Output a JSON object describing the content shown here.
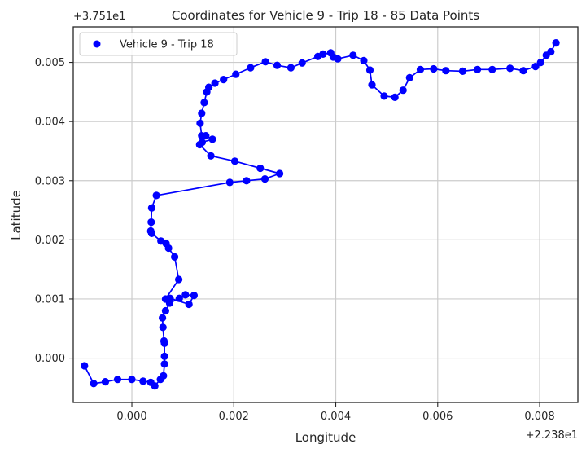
{
  "chart_data": {
    "type": "scatter",
    "title": "Coordinates for Vehicle 9 - Trip 18 - 85 Data Points",
    "xlabel": "Longitude",
    "ylabel": "Latitude",
    "x_offset_label": "+2.238e1",
    "y_offset_label": "+3.751e1",
    "xlim": [
      -0.00115,
      0.00875
    ],
    "ylim": [
      -0.00075,
      0.0056
    ],
    "x_ticks": [
      0.0,
      0.002,
      0.004,
      0.006,
      0.008
    ],
    "x_tick_labels": [
      "0.000",
      "0.002",
      "0.004",
      "0.006",
      "0.008"
    ],
    "y_ticks": [
      0.0,
      0.001,
      0.002,
      0.003,
      0.004,
      0.005
    ],
    "y_tick_labels": [
      "0.000",
      "0.001",
      "0.002",
      "0.003",
      "0.004",
      "0.005"
    ],
    "grid": true,
    "legend_position": "upper-left",
    "series": [
      {
        "name": "Vehicle 9 - Trip 18",
        "color": "#0000ff",
        "style": "line+markers",
        "points": [
          [
            -0.00093,
            -0.00013
          ],
          [
            -0.00075,
            -0.00043
          ],
          [
            -0.00052,
            -0.0004
          ],
          [
            -0.00028,
            -0.00036
          ],
          [
            0.0,
            -0.00036
          ],
          [
            0.00022,
            -0.00039
          ],
          [
            0.00037,
            -0.00041
          ],
          [
            0.00045,
            -0.00047
          ],
          [
            0.00056,
            -0.00036
          ],
          [
            0.00062,
            -0.0003
          ],
          [
            0.00064,
            -0.0001
          ],
          [
            0.00064,
            3e-05
          ],
          [
            0.00064,
            0.00025
          ],
          [
            0.00063,
            0.00029
          ],
          [
            0.00061,
            0.00052
          ],
          [
            0.0006,
            0.00068
          ],
          [
            0.00066,
            0.0008
          ],
          [
            0.00074,
            0.00093
          ],
          [
            0.00093,
            0.00101
          ],
          [
            0.00105,
            0.00107
          ],
          [
            0.00122,
            0.00106
          ],
          [
            0.00112,
            0.00091
          ],
          [
            0.00075,
            0.00101
          ],
          [
            0.00066,
            0.001
          ],
          [
            0.00092,
            0.00133
          ],
          [
            0.00084,
            0.00171
          ],
          [
            0.00072,
            0.00186
          ],
          [
            0.00067,
            0.00194
          ],
          [
            0.00057,
            0.00198
          ],
          [
            0.00039,
            0.00211
          ],
          [
            0.00037,
            0.00215
          ],
          [
            0.00038,
            0.0023
          ],
          [
            0.00039,
            0.00254
          ],
          [
            0.00048,
            0.00275
          ],
          [
            0.00192,
            0.00297
          ],
          [
            0.00225,
            0.003
          ],
          [
            0.00261,
            0.00303
          ],
          [
            0.0029,
            0.00312
          ],
          [
            0.00252,
            0.00321
          ],
          [
            0.00202,
            0.00333
          ],
          [
            0.00155,
            0.00342
          ],
          [
            0.00133,
            0.00361
          ],
          [
            0.00138,
            0.00365
          ],
          [
            0.00158,
            0.0037
          ],
          [
            0.00145,
            0.00376
          ],
          [
            0.00137,
            0.00376
          ],
          [
            0.00134,
            0.00397
          ],
          [
            0.00137,
            0.00414
          ],
          [
            0.00142,
            0.00432
          ],
          [
            0.00147,
            0.0045
          ],
          [
            0.00151,
            0.00458
          ],
          [
            0.00163,
            0.00465
          ],
          [
            0.0018,
            0.00471
          ],
          [
            0.00204,
            0.0048
          ],
          [
            0.00233,
            0.00491
          ],
          [
            0.00262,
            0.00501
          ],
          [
            0.00285,
            0.00495
          ],
          [
            0.00312,
            0.00491
          ],
          [
            0.00334,
            0.00499
          ],
          [
            0.00365,
            0.0051
          ],
          [
            0.00375,
            0.00514
          ],
          [
            0.0039,
            0.00516
          ],
          [
            0.00395,
            0.00509
          ],
          [
            0.00404,
            0.00506
          ],
          [
            0.00434,
            0.00512
          ],
          [
            0.00455,
            0.00503
          ],
          [
            0.00467,
            0.00487
          ],
          [
            0.00471,
            0.00462
          ],
          [
            0.00495,
            0.00443
          ],
          [
            0.00516,
            0.00441
          ],
          [
            0.00532,
            0.00453
          ],
          [
            0.00545,
            0.00474
          ],
          [
            0.00566,
            0.00488
          ],
          [
            0.00592,
            0.00489
          ],
          [
            0.00616,
            0.00486
          ],
          [
            0.00649,
            0.00485
          ],
          [
            0.00678,
            0.00488
          ],
          [
            0.00707,
            0.00488
          ],
          [
            0.00742,
            0.0049
          ],
          [
            0.00768,
            0.00486
          ],
          [
            0.00792,
            0.00493
          ],
          [
            0.00802,
            0.005
          ],
          [
            0.00813,
            0.00512
          ],
          [
            0.00822,
            0.00518
          ],
          [
            0.00832,
            0.00533
          ]
        ]
      }
    ]
  }
}
